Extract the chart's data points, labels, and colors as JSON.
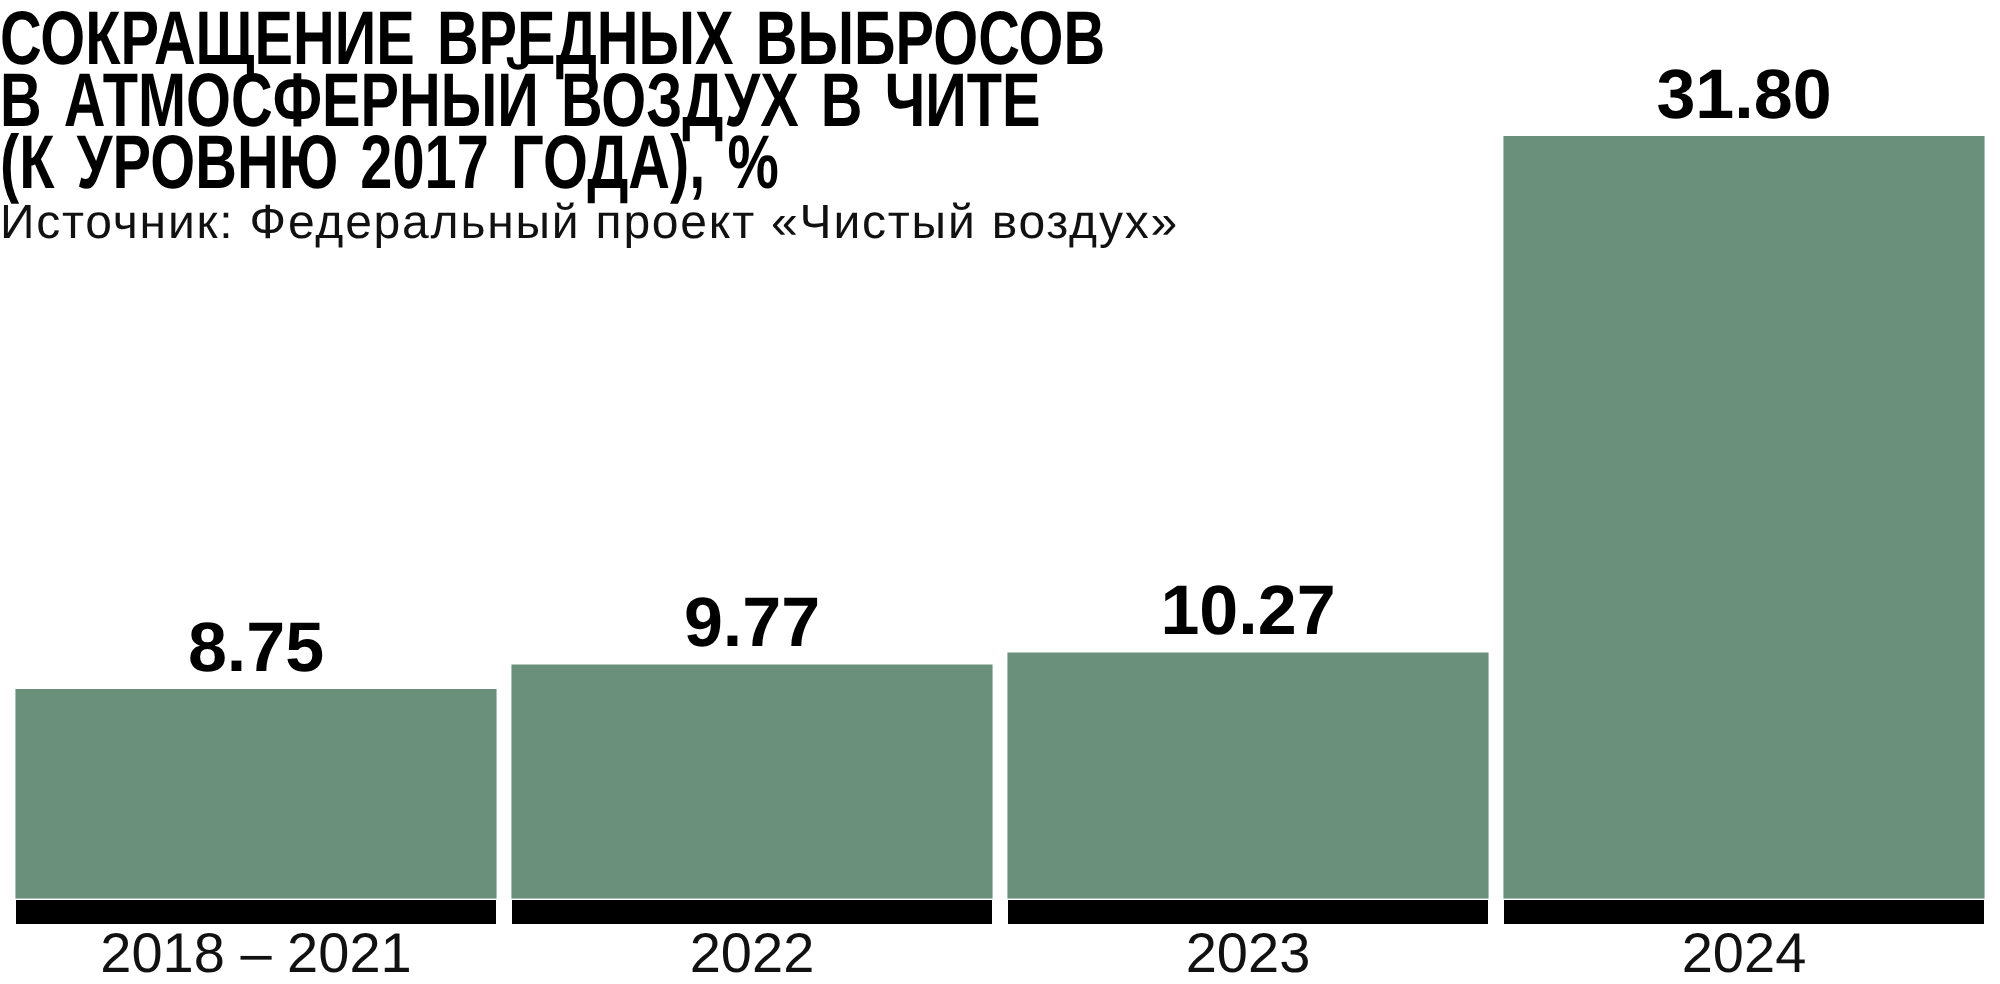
{
  "chart_data": {
    "type": "bar",
    "title": "СОКРАЩЕНИЕ ВРЕДНЫХ ВЫБРОСОВ В АТМОСФЕРНЫЙ ВОЗДУХ В ЧИТЕ (К УРОВНЮ 2017 ГОДА), %",
    "annotations": [
      "Источник: Федеральный проект «Чистый воздух»"
    ],
    "categories": [
      "2018 – 2021",
      "2022",
      "2023",
      "2024"
    ],
    "values": [
      8.75,
      9.77,
      10.27,
      31.8
    ],
    "value_labels": [
      "8.75",
      "9.77",
      "10.27",
      "31.80"
    ],
    "color": "#6a8f7b",
    "ylim": [
      0,
      31.8
    ],
    "tick_labels": "x"
  }
}
